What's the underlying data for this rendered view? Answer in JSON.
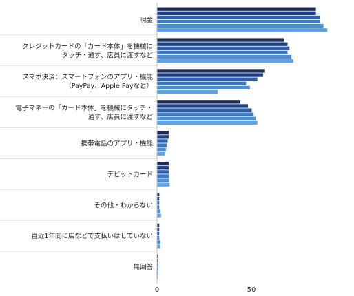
{
  "chart_data": {
    "type": "bar",
    "orientation": "horizontal",
    "categories": [
      [
        "現金"
      ],
      [
        "クレジットカードの「カード本体」を機械に",
        "タッチ・通す、店員に渡すなど"
      ],
      [
        "スマホ決済：スマートフォンのアプリ・機能",
        "（PayPay、Apple Payなど）"
      ],
      [
        "電子マネーの「カード本体」を機械にタッチ・",
        "通す、店員に渡すなど"
      ],
      [
        "携帯電話のアプリ・機能"
      ],
      [
        "デビットカード"
      ],
      [
        "その他・わからない"
      ],
      [
        "直近1年間に店などで支払いはしていない"
      ],
      [
        "無回答"
      ]
    ],
    "series": [
      {
        "color": "#1f2d52",
        "values": [
          84,
          67,
          57,
          44,
          6,
          6,
          1,
          1,
          0.3
        ]
      },
      {
        "color": "#1e3f80",
        "values": [
          84,
          69,
          56,
          48,
          6,
          6,
          1,
          1,
          0.3
        ]
      },
      {
        "color": "#2f5fa8",
        "values": [
          86,
          70,
          53,
          50,
          5.5,
          6,
          1,
          1,
          0.3
        ]
      },
      {
        "color": "#3a78c2",
        "values": [
          86,
          69,
          47,
          51,
          5,
          6,
          1,
          1,
          0.3
        ]
      },
      {
        "color": "#4a8fd6",
        "values": [
          88,
          71,
          49,
          52,
          4.5,
          6,
          1.5,
          1.5,
          0.3
        ]
      },
      {
        "color": "#5ba4ea",
        "values": [
          90,
          72,
          32,
          53,
          4,
          6.5,
          2,
          1.5,
          0.3
        ]
      }
    ],
    "xlim": [
      0,
      100
    ],
    "xticks": [
      0,
      50
    ],
    "grid": false
  }
}
